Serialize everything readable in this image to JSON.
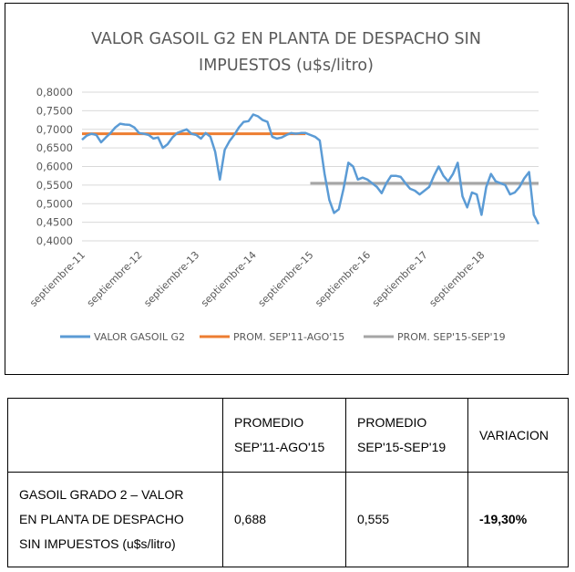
{
  "chart_data": {
    "type": "line",
    "title": [
      "VALOR GASOIL G2 EN PLANTA DE DESPACHO SIN",
      "IMPUESTOS (u$s/litro)"
    ],
    "ylim": [
      0.4,
      0.8
    ],
    "y_ticks": [
      "0,4000",
      "0,4500",
      "0,5000",
      "0,5500",
      "0,6000",
      "0,6500",
      "0,7000",
      "0,7500",
      "0,8000"
    ],
    "x_start_month": "2011-09",
    "x_end_month": "2019-09",
    "x_tick_labels": [
      "septiembre-11",
      "septiembre-12",
      "septiembre-13",
      "septiembre-14",
      "septiembre-15",
      "septiembre-16",
      "septiembre-17",
      "septiembre-18"
    ],
    "series": [
      {
        "name": "VALOR GASOIL G2",
        "color": "#5B9BD5",
        "values": [
          0.672,
          0.683,
          0.688,
          0.685,
          0.665,
          0.678,
          0.69,
          0.705,
          0.715,
          0.713,
          0.712,
          0.705,
          0.69,
          0.688,
          0.685,
          0.675,
          0.678,
          0.65,
          0.66,
          0.678,
          0.69,
          0.695,
          0.7,
          0.688,
          0.685,
          0.675,
          0.69,
          0.68,
          0.64,
          0.565,
          0.645,
          0.668,
          0.685,
          0.705,
          0.72,
          0.722,
          0.74,
          0.735,
          0.725,
          0.72,
          0.68,
          0.675,
          0.678,
          0.685,
          0.69,
          0.688,
          0.69,
          0.69,
          0.685,
          0.68,
          0.67,
          0.58,
          0.51,
          0.475,
          0.485,
          0.54,
          0.61,
          0.6,
          0.565,
          0.57,
          0.565,
          0.555,
          0.545,
          0.528,
          0.555,
          0.575,
          0.575,
          0.572,
          0.555,
          0.54,
          0.535,
          0.525,
          0.535,
          0.545,
          0.575,
          0.6,
          0.575,
          0.56,
          0.58,
          0.61,
          0.52,
          0.49,
          0.53,
          0.525,
          0.47,
          0.545,
          0.58,
          0.56,
          0.555,
          0.55,
          0.525,
          0.53,
          0.545,
          0.568,
          0.585,
          0.47,
          0.445
        ]
      },
      {
        "name": "PROM. SEP'11-AGO'15",
        "color": "#ED7D31",
        "value": 0.688,
        "start_index": 0,
        "end_index": 47
      },
      {
        "name": "PROM. SEP'15-SEP'19",
        "color": "#A5A5A5",
        "value": 0.555,
        "start_index": 48,
        "end_index": 96
      }
    ],
    "legend_position": "bottom",
    "grid": true
  },
  "table": {
    "header": {
      "col1": "",
      "col2": [
        "PROMEDIO",
        "SEP'11-AGO'15"
      ],
      "col3": [
        "PROMEDIO",
        "SEP'15-SEP'19"
      ],
      "col4": "VARIACION"
    },
    "row": {
      "label": [
        "GASOIL GRADO 2 – VALOR",
        "EN PLANTA DE DESPACHO",
        "SIN IMPUESTOS (u$s/litro)"
      ],
      "avg1": "0,688",
      "avg2": "0,555",
      "variation": "-19,30%"
    }
  }
}
